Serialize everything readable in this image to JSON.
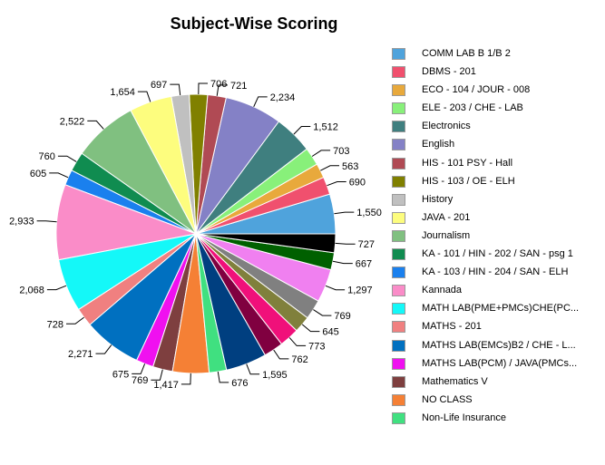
{
  "chart_data": {
    "type": "pie",
    "title": "Subject-Wise Scoring",
    "slices": [
      {
        "label": "COMM LAB B 1/B 2",
        "value": 1550,
        "display": "1,550",
        "color": "#4fa3dc"
      },
      {
        "label": "DBMS - 201",
        "value": 690,
        "display": "690",
        "color": "#f0506e"
      },
      {
        "label": "ECO - 104 / JOUR - 008",
        "value": 563,
        "display": "563",
        "color": "#e8a93c"
      },
      {
        "label": "ELE - 203 / CHE - LAB",
        "value": 703,
        "display": "703",
        "color": "#88f07a"
      },
      {
        "label": "Electronics",
        "value": 1512,
        "display": "1,512",
        "color": "#3f7f7f"
      },
      {
        "label": "English",
        "value": 2234,
        "display": "2,234",
        "color": "#8481c6"
      },
      {
        "label": "HIS - 101  PSY - Hall",
        "value": 721,
        "display": "721",
        "color": "#b04a54"
      },
      {
        "label": "HIS - 103 / OE - ELH",
        "value": 706,
        "display": "706",
        "color": "#808000"
      },
      {
        "label": "History",
        "value": 697,
        "display": "697",
        "color": "#c0c0c0"
      },
      {
        "label": "JAVA - 201",
        "value": 1654,
        "display": "1,654",
        "color": "#fdfd7e"
      },
      {
        "label": "Journalism",
        "value": 2522,
        "display": "2,522",
        "color": "#80c080"
      },
      {
        "label": "KA - 101 / HIN - 202 / SAN - psg 1",
        "value": 760,
        "display": "760",
        "color": "#108c50"
      },
      {
        "label": "KA - 103 / HIN - 204 / SAN - ELH",
        "value": 605,
        "display": "605",
        "color": "#1a80ee"
      },
      {
        "label": "Kannada",
        "value": 2933,
        "display": "2,933",
        "color": "#fa8cc8"
      },
      {
        "label": "MATH LAB(PME+PMCs)CHE(PC...",
        "value": 2068,
        "display": "2,068",
        "color": "#14f8f8"
      },
      {
        "label": "MATHS - 201",
        "value": 728,
        "display": "728",
        "color": "#f08080"
      },
      {
        "label": "MATHS LAB(EMCs)B2 / CHE - L...",
        "value": 2271,
        "display": "2,271",
        "color": "#0070c0"
      },
      {
        "label": "MATHS LAB(PCM) / JAVA(PMCs...",
        "value": 675,
        "display": "675",
        "color": "#f010f0"
      },
      {
        "label": "Mathematics V",
        "value": 769,
        "display": "769",
        "color": "#7e3f3f"
      },
      {
        "label": "NO CLASS",
        "value": 1417,
        "display": "1,417",
        "color": "#f58035"
      },
      {
        "label": "Non-Life Insurance",
        "value": 676,
        "display": "676",
        "color": "#40e080"
      },
      {
        "label": "",
        "value": 1595,
        "display": "1,595",
        "color": "#003f80"
      },
      {
        "label": "",
        "value": 762,
        "display": "762",
        "color": "#800040"
      },
      {
        "label": "",
        "value": 773,
        "display": "773",
        "color": "#f0107a"
      },
      {
        "label": "",
        "value": 645,
        "display": "645",
        "color": "#80803c"
      },
      {
        "label": "",
        "value": 769,
        "display": "769",
        "color": "#808080"
      },
      {
        "label": "",
        "value": 1297,
        "display": "1,297",
        "color": "#f080f0"
      },
      {
        "label": "",
        "value": 667,
        "display": "667",
        "color": "#006000"
      },
      {
        "label": "",
        "value": 727,
        "display": "727",
        "color": "#000000"
      }
    ],
    "legend_count": 21,
    "legend_position": "right"
  }
}
